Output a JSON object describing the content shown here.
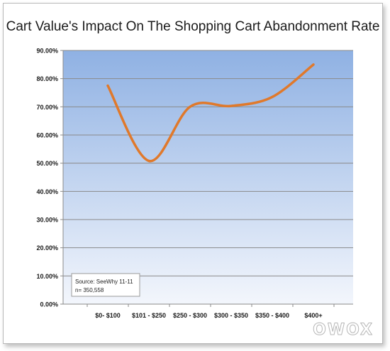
{
  "title": "Cart Value's Impact On The Shopping Cart Abandonment Rate",
  "watermark": "OWOX",
  "source_note": {
    "line1": "Source: SeeWhy 11-11",
    "line2": "n= 350,558"
  },
  "colors": {
    "line": "#e0792b",
    "plot_top": "#8fb1e3",
    "plot_bottom": "#f3f6fc",
    "grid": "#8a8a8a"
  },
  "chart_data": {
    "type": "line",
    "title": "Cart Value's Impact On The Shopping Cart Abandonment Rate",
    "xlabel": "",
    "ylabel": "",
    "categories": [
      "$0- $100",
      "$101 - $250",
      "$250 - $300",
      "$300 - $350",
      "$350 - $400",
      "$400+"
    ],
    "series": [
      {
        "values": [
          77.5,
          50.8,
          70.0,
          70.3,
          73.5,
          85.0
        ]
      }
    ],
    "y_ticks": [
      "0.00%",
      "10.00%",
      "20.00%",
      "30.00%",
      "40.00%",
      "50.00%",
      "60.00%",
      "70.00%",
      "80.00%",
      "90.00%"
    ],
    "ylim": [
      0,
      90
    ],
    "grid": true,
    "smooth": true,
    "legend": "none"
  }
}
